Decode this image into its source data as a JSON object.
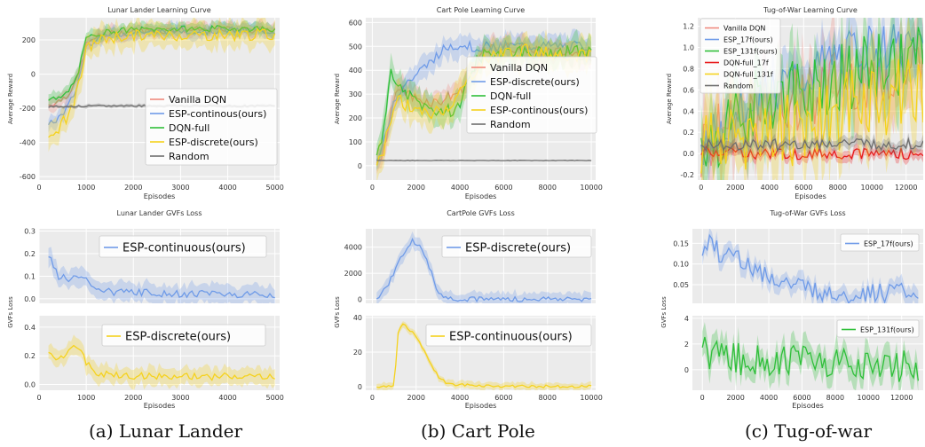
{
  "captions": [
    "(a) Lunar Lander",
    "(b) Cart Pole",
    "(c) Tug-of-war"
  ],
  "colors": {
    "red": "#f08a7e",
    "blue": "#6f9be8",
    "green": "#2fbf3a",
    "yellow": "#f5d21e",
    "gray": "#6e6e6e",
    "bright_red": "#e8191b",
    "plot_bg": "#ebebeb",
    "grid": "#ffffff"
  },
  "chart_data": [
    {
      "type": "line",
      "title": "Lunar Lander Learning Curve",
      "xlabel": "Episodes",
      "ylabel": "Average Reward",
      "xlim": [
        0,
        5100
      ],
      "ylim": [
        -620,
        330
      ],
      "xticks": [
        0,
        1000,
        2000,
        3000,
        4000,
        5000
      ],
      "yticks": [
        -600,
        -400,
        -200,
        0,
        200
      ],
      "legend": "lower-right",
      "series": [
        {
          "name": "Vanilla DQN",
          "color": "#f08a7e",
          "x": [
            200,
            400,
            600,
            800,
            1000,
            1200,
            1500,
            2000,
            2500,
            3000,
            3500,
            4000,
            4500,
            5000
          ],
          "y": [
            -180,
            -160,
            -120,
            -40,
            170,
            215,
            235,
            250,
            255,
            260,
            258,
            262,
            260,
            258
          ],
          "band": 40
        },
        {
          "name": "ESP-continous(ours)",
          "color": "#6f9be8",
          "x": [
            200,
            400,
            600,
            800,
            1000,
            1200,
            1500,
            2000,
            2500,
            3000,
            3500,
            4000,
            4500,
            5000
          ],
          "y": [
            -300,
            -260,
            -200,
            -80,
            160,
            210,
            230,
            245,
            250,
            255,
            250,
            258,
            255,
            250
          ],
          "band": 40
        },
        {
          "name": "DQN-full",
          "color": "#2fbf3a",
          "x": [
            200,
            400,
            600,
            800,
            1000,
            1200,
            1500,
            2000,
            2500,
            3000,
            3500,
            4000,
            4500,
            5000
          ],
          "y": [
            -140,
            -150,
            -110,
            -20,
            200,
            235,
            250,
            260,
            262,
            265,
            265,
            268,
            266,
            265
          ],
          "band": 35
        },
        {
          "name": "ESP-discrete(ours)",
          "color": "#f5d21e",
          "x": [
            200,
            400,
            600,
            800,
            1000,
            1200,
            1500,
            2000,
            2500,
            3000,
            3500,
            4000,
            4500,
            5000
          ],
          "y": [
            -400,
            -320,
            -250,
            -120,
            140,
            190,
            215,
            225,
            225,
            230,
            228,
            230,
            232,
            230
          ],
          "band": 70
        },
        {
          "name": "Random",
          "color": "#6e6e6e",
          "x": [
            200,
            1000,
            2000,
            3000,
            4000,
            5000
          ],
          "y": [
            -190,
            -188,
            -185,
            -186,
            -187,
            -186
          ],
          "band": 10
        }
      ]
    },
    {
      "type": "line",
      "title": "Cart Pole Learning Curve",
      "xlabel": "Episodes",
      "ylabel": "Average Reward",
      "xlim": [
        -300,
        10200
      ],
      "ylim": [
        -60,
        620
      ],
      "xticks": [
        0,
        2000,
        4000,
        6000,
        8000,
        10000
      ],
      "yticks": [
        0,
        100,
        200,
        300,
        400,
        500,
        600
      ],
      "legend": "right",
      "series": [
        {
          "name": "Vanilla DQN",
          "color": "#f08a7e",
          "x": [
            200,
            500,
            800,
            1000,
            1200,
            1500,
            2000,
            2500,
            3000,
            3500,
            4000,
            4500,
            5000,
            5500,
            6000,
            7000,
            8000,
            9000,
            10000
          ],
          "y": [
            20,
            60,
            200,
            300,
            320,
            310,
            280,
            270,
            265,
            290,
            310,
            380,
            470,
            490,
            495,
            490,
            480,
            470,
            460
          ],
          "band": 45
        },
        {
          "name": "ESP-discrete(ours)",
          "color": "#6f9be8",
          "x": [
            200,
            500,
            800,
            1000,
            1200,
            1500,
            2000,
            2500,
            3000,
            3500,
            4000,
            4500,
            5000,
            5500,
            6000,
            7000,
            8000,
            9000,
            10000
          ],
          "y": [
            20,
            80,
            200,
            280,
            310,
            340,
            380,
            420,
            470,
            500,
            510,
            500,
            495,
            500,
            500,
            500,
            500,
            500,
            500
          ],
          "band": 45
        },
        {
          "name": "DQN-full",
          "color": "#2fbf3a",
          "x": [
            200,
            500,
            800,
            1000,
            1200,
            1500,
            2000,
            2500,
            3000,
            3500,
            4000,
            4500,
            5000,
            5500,
            6000,
            7000,
            8000,
            9000,
            10000
          ],
          "y": [
            20,
            150,
            380,
            390,
            320,
            300,
            270,
            240,
            230,
            230,
            250,
            400,
            460,
            470,
            480,
            475,
            470,
            480,
            470
          ],
          "band": 55
        },
        {
          "name": "ESP-continous(ours)",
          "color": "#f5d21e",
          "x": [
            200,
            500,
            800,
            1000,
            1200,
            1500,
            2000,
            2500,
            3000,
            3500,
            4000,
            4500,
            5000,
            5500,
            6000,
            7000,
            8000,
            9000,
            10000
          ],
          "y": [
            20,
            60,
            180,
            260,
            280,
            260,
            230,
            210,
            230,
            250,
            300,
            380,
            430,
            460,
            470,
            480,
            470,
            470,
            460
          ],
          "band": 60
        },
        {
          "name": "Random",
          "color": "#6e6e6e",
          "x": [
            200,
            2000,
            4000,
            6000,
            8000,
            10000
          ],
          "y": [
            22,
            22,
            22,
            22,
            22,
            22
          ],
          "band": 2
        }
      ]
    },
    {
      "type": "line",
      "title": "Tug-of-War Learning Curve",
      "xlabel": "Episodes",
      "ylabel": "Average Reward",
      "xlim": [
        -200,
        13000
      ],
      "ylim": [
        -0.25,
        1.28
      ],
      "xticks": [
        0,
        2000,
        4000,
        6000,
        8000,
        10000,
        12000
      ],
      "yticks": [
        -0.2,
        0.0,
        0.2,
        0.4,
        0.6,
        0.8,
        1.0,
        1.2
      ],
      "legend": "top-left",
      "series": [
        {
          "name": "Vanilla DQN",
          "color": "#f08a7e",
          "x": [
            0,
            1000,
            2000,
            3000,
            4000,
            5000,
            6000,
            7000,
            8000,
            9000,
            10000,
            11000,
            12000,
            13000
          ],
          "y": [
            0.05,
            0.15,
            0.3,
            0.4,
            0.45,
            0.5,
            0.55,
            0.6,
            0.65,
            0.7,
            0.72,
            0.74,
            0.76,
            0.78
          ],
          "band": 0.3
        },
        {
          "name": "ESP_17f(ours)",
          "color": "#6f9be8",
          "x": [
            0,
            1000,
            2000,
            3000,
            4000,
            5000,
            6000,
            7000,
            8000,
            9000,
            10000,
            11000,
            12000,
            13000
          ],
          "y": [
            0.05,
            0.2,
            0.4,
            0.55,
            0.6,
            0.65,
            0.7,
            0.8,
            0.9,
            0.95,
            1.0,
            1.0,
            1.0,
            1.0
          ],
          "band": 0.2
        },
        {
          "name": "ESP_131f(ours)",
          "color": "#2fbf3a",
          "x": [
            0,
            1000,
            2000,
            3000,
            4000,
            5000,
            6000,
            7000,
            8000,
            9000,
            10000,
            11000,
            12000,
            13000
          ],
          "y": [
            0.05,
            0.2,
            0.35,
            0.45,
            0.5,
            0.55,
            0.6,
            0.65,
            0.7,
            0.75,
            0.8,
            0.82,
            0.85,
            0.88
          ],
          "band": 0.3
        },
        {
          "name": "DQN-full_17f",
          "color": "#e8191b",
          "x": [
            0,
            2000,
            4000,
            6000,
            8000,
            10000,
            12000,
            13000
          ],
          "y": [
            0.02,
            0.01,
            0.0,
            0.0,
            0.0,
            0.0,
            0.0,
            0.0
          ],
          "band": 0.05
        },
        {
          "name": "DQN-full_131f",
          "color": "#f5d21e",
          "x": [
            0,
            1000,
            2000,
            3000,
            4000,
            5000,
            6000,
            7000,
            8000,
            9000,
            10000,
            11000,
            12000,
            13000
          ],
          "y": [
            0.05,
            0.1,
            0.15,
            0.2,
            0.22,
            0.25,
            0.3,
            0.35,
            0.4,
            0.45,
            0.5,
            0.55,
            0.6,
            0.62
          ],
          "band": 0.35
        },
        {
          "name": "Random",
          "color": "#6e6e6e",
          "x": [
            0,
            2000,
            4000,
            6000,
            8000,
            10000,
            12000,
            13000
          ],
          "y": [
            0.08,
            0.09,
            0.08,
            0.09,
            0.1,
            0.09,
            0.08,
            0.1
          ],
          "band": 0.05
        }
      ]
    },
    {
      "type": "line",
      "title": "Lunar Lander GVFs Loss",
      "xlabel": "Episodes",
      "ylabel": "GVFs Loss",
      "xlim": [
        0,
        5100
      ],
      "panels": [
        {
          "ylim": [
            -0.02,
            0.31
          ],
          "yticks": [
            0.0,
            0.1,
            0.2,
            0.3
          ],
          "legend": "top-right",
          "series": [
            {
              "name": "ESP-continuous(ours)",
              "color": "#6f9be8",
              "x": [
                200,
                400,
                600,
                800,
                1000,
                1200,
                1500,
                2000,
                2500,
                3000,
                3500,
                4000,
                4500,
                5000
              ],
              "y": [
                0.2,
                0.1,
                0.09,
                0.09,
                0.08,
                0.05,
                0.03,
                0.03,
                0.025,
                0.02,
                0.025,
                0.02,
                0.02,
                0.02
              ],
              "band": 0.04
            }
          ]
        },
        {
          "ylim": [
            -0.04,
            0.48
          ],
          "yticks": [
            0.0,
            0.2,
            0.4
          ],
          "legend": "top-right",
          "series": [
            {
              "name": "ESP-discrete(ours)",
              "color": "#f5d21e",
              "x": [
                200,
                400,
                600,
                800,
                1000,
                1200,
                1500,
                2000,
                2500,
                3000,
                3500,
                4000,
                4500,
                5000
              ],
              "y": [
                0.21,
                0.18,
                0.22,
                0.28,
                0.15,
                0.08,
                0.07,
                0.06,
                0.06,
                0.06,
                0.05,
                0.06,
                0.05,
                0.06
              ],
              "band": 0.06
            }
          ]
        }
      ],
      "xticks": [
        0,
        1000,
        2000,
        3000,
        4000,
        5000
      ]
    },
    {
      "type": "line",
      "title": "CartPole GVFs Loss",
      "xlabel": "Episodes",
      "ylabel": "GVFs Loss",
      "xlim": [
        -300,
        10200
      ],
      "panels": [
        {
          "ylim": [
            -300,
            5400
          ],
          "yticks": [
            0,
            2000,
            4000
          ],
          "legend": "top-right",
          "series": [
            {
              "name": "ESP-discrete(ours)",
              "color": "#6f9be8",
              "x": [
                200,
                600,
                1000,
                1400,
                1800,
                2200,
                2600,
                3000,
                3400,
                4000,
                5000,
                6000,
                8000,
                10000
              ],
              "y": [
                0,
                800,
                2000,
                3500,
                4500,
                4200,
                2500,
                600,
                100,
                20,
                10,
                5,
                5,
                5
              ],
              "band": 500
            }
          ]
        },
        {
          "ylim": [
            -2,
            41
          ],
          "yticks": [
            0,
            20,
            40
          ],
          "legend": "top-right",
          "series": [
            {
              "name": "ESP-continuous(ours)",
              "color": "#f5d21e",
              "x": [
                200,
                600,
                1000,
                1200,
                1400,
                1800,
                2200,
                2600,
                3000,
                3400,
                4000,
                5000,
                6000,
                8000,
                10000
              ],
              "y": [
                0,
                0,
                1,
                34,
                36,
                32,
                25,
                15,
                6,
                2,
                1,
                0.5,
                0.3,
                0.2,
                0.2
              ],
              "band": 2
            }
          ]
        }
      ],
      "xticks": [
        0,
        2000,
        4000,
        6000,
        8000,
        10000
      ]
    },
    {
      "type": "line",
      "title": "Tug-of-War GVFs Loss",
      "xlabel": "Episodes",
      "ylabel": "GVFs Loss",
      "xlim": [
        -600,
        13300
      ],
      "panels": [
        {
          "ylim": [
            0.005,
            0.185
          ],
          "yticks": [
            0.05,
            0.1,
            0.15
          ],
          "legend": "top-right",
          "series": [
            {
              "name": "ESP_17f(ours)",
              "color": "#6f9be8",
              "x": [
                0,
                500,
                1000,
                2000,
                3000,
                4000,
                5000,
                6000,
                7000,
                8000,
                9000,
                10000,
                11000,
                12000,
                13000
              ],
              "y": [
                0.14,
                0.15,
                0.13,
                0.12,
                0.09,
                0.07,
                0.05,
                0.04,
                0.035,
                0.03,
                0.03,
                0.03,
                0.028,
                0.03,
                0.03
              ],
              "band": 0.02
            }
          ]
        },
        {
          "ylim": [
            -1.6,
            4.2
          ],
          "yticks": [
            0,
            2,
            4
          ],
          "legend": "top-right",
          "series": [
            {
              "name": "ESP_131f(ours)",
              "color": "#2fbf3a",
              "x": [
                0,
                1000,
                2000,
                3000,
                4000,
                5000,
                6000,
                7000,
                8000,
                9000,
                10000,
                11000,
                12000,
                13000
              ],
              "y": [
                1.3,
                1.0,
                0.9,
                0.8,
                0.8,
                0.7,
                0.9,
                0.6,
                0.5,
                0.5,
                0.4,
                0.3,
                0.25,
                0.2
              ],
              "band": 1.0
            }
          ]
        }
      ],
      "xticks": [
        0,
        2000,
        4000,
        6000,
        8000,
        10000,
        12000
      ]
    }
  ]
}
